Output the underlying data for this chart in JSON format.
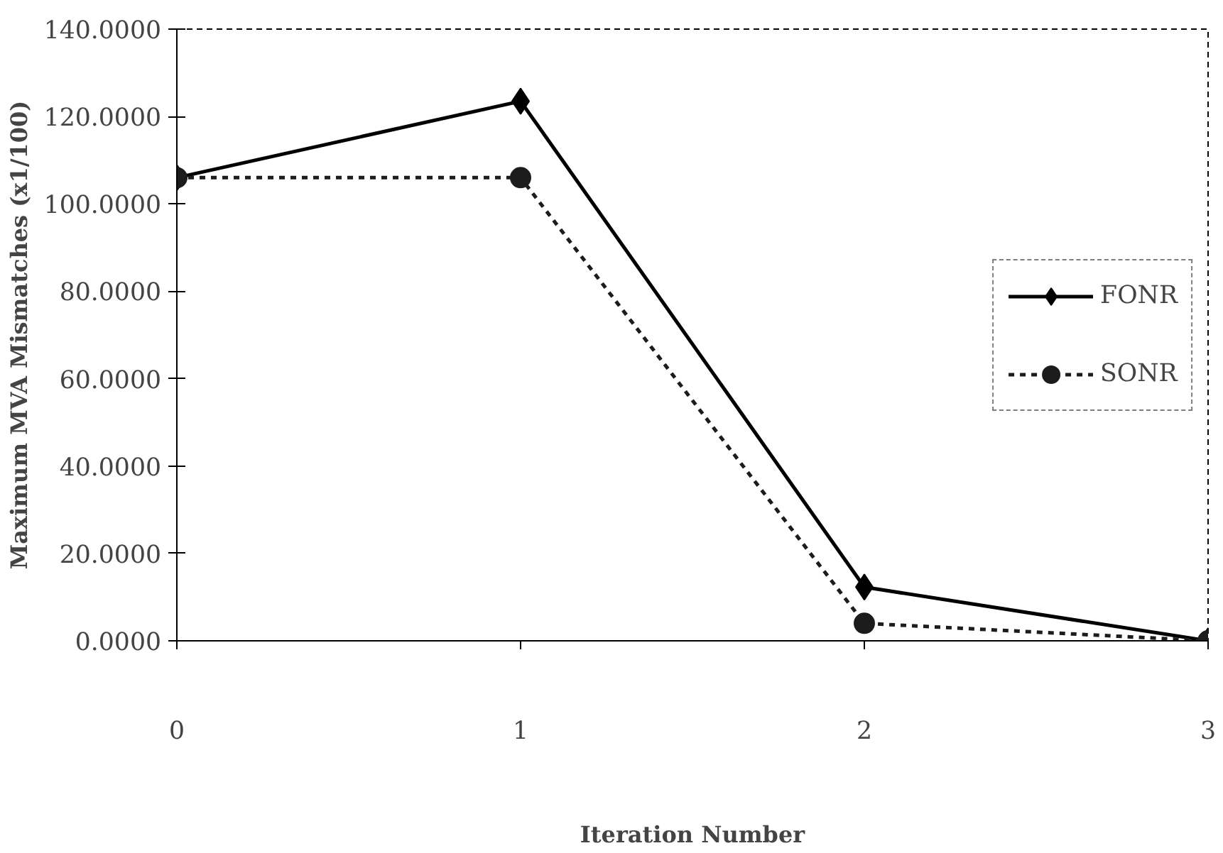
{
  "chart_data": {
    "type": "line",
    "xlabel": "Iteration Number",
    "ylabel": "Maximum MVA Mismatches (x1/100)",
    "x": [
      0,
      1,
      2,
      3
    ],
    "xlim": [
      0,
      3
    ],
    "xticks": [
      0,
      1,
      2,
      3
    ],
    "ylim": [
      0,
      140
    ],
    "yticks": [
      {
        "value": 0,
        "label": "0.0000"
      },
      {
        "value": 20,
        "label": "20.0000"
      },
      {
        "value": 40,
        "label": "40.0000"
      },
      {
        "value": 60,
        "label": "60.0000"
      },
      {
        "value": 80,
        "label": "80.0000"
      },
      {
        "value": 100,
        "label": "100.0000"
      },
      {
        "value": 120,
        "label": "120.0000"
      },
      {
        "value": 140,
        "label": "140.0000"
      }
    ],
    "series": [
      {
        "name": "FONR",
        "color": "#000000",
        "values": [
          106,
          123.5,
          12.3,
          0
        ],
        "marker": "diamond",
        "line_style": "solid"
      },
      {
        "name": "SONR",
        "color": "#1c1c1c",
        "values": [
          106,
          106,
          4,
          0
        ],
        "marker": "circle",
        "line_style": "dashed"
      }
    ],
    "legend": "right",
    "grid": false
  }
}
